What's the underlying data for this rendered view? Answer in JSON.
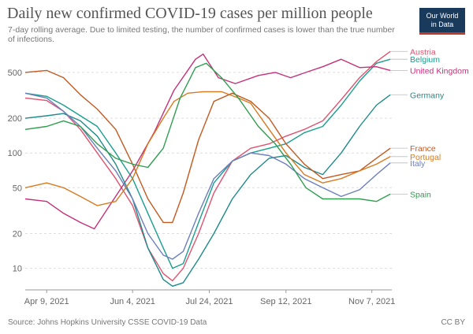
{
  "header": {
    "title": "Daily new confirmed COVID-19 cases per million people",
    "subtitle": "7-day rolling average. Due to limited testing, the number of confirmed cases is lower than the true number of infections.",
    "logo_line1": "Our World",
    "logo_line2": "in Data"
  },
  "footer": {
    "source": "Source: Johns Hopkins University CSSE COVID-19 Data",
    "license": "CC BY"
  },
  "chart_data": {
    "type": "line",
    "title": "Daily new confirmed COVID-19 cases per million people",
    "subtitle": "7-day rolling average. Due to limited testing, the number of confirmed cases is lower than the true number of infections.",
    "xlabel": "",
    "ylabel": "",
    "y_scale": "log",
    "ylim": [
      6.5,
      800
    ],
    "y_ticks": [
      10,
      20,
      50,
      100,
      200,
      500
    ],
    "y_tick_labels": [
      "10",
      "20",
      "50",
      "100",
      "200",
      "500"
    ],
    "xlim": [
      "2021-03-26",
      "2021-11-20"
    ],
    "x_ticks": [
      "2021-04-09",
      "2021-06-04",
      "2021-07-24",
      "2021-09-12",
      "2021-11-07"
    ],
    "x_tick_labels": [
      "Apr 9, 2021",
      "Jun 4, 2021",
      "Jul 24, 2021",
      "Sep 12, 2021",
      "Nov 7, 2021"
    ],
    "grid": "horizontal",
    "legend": "right",
    "series": [
      {
        "name": "Austria",
        "color": "#e0526f",
        "label_value": 760,
        "points": [
          [
            "2021-03-26",
            300
          ],
          [
            "2021-04-09",
            285
          ],
          [
            "2021-04-20",
            230
          ],
          [
            "2021-05-01",
            160
          ],
          [
            "2021-05-12",
            100
          ],
          [
            "2021-05-24",
            60
          ],
          [
            "2021-06-04",
            35
          ],
          [
            "2021-06-14",
            15
          ],
          [
            "2021-06-24",
            9
          ],
          [
            "2021-06-30",
            7.8
          ],
          [
            "2021-07-07",
            10
          ],
          [
            "2021-07-17",
            20
          ],
          [
            "2021-07-27",
            45
          ],
          [
            "2021-08-08",
            85
          ],
          [
            "2021-08-20",
            110
          ],
          [
            "2021-09-01",
            120
          ],
          [
            "2021-09-12",
            140
          ],
          [
            "2021-09-24",
            160
          ],
          [
            "2021-10-06",
            190
          ],
          [
            "2021-10-18",
            290
          ],
          [
            "2021-10-30",
            450
          ],
          [
            "2021-11-10",
            620
          ],
          [
            "2021-11-19",
            760
          ]
        ]
      },
      {
        "name": "Belgium",
        "color": "#1a9e8f",
        "label_value": 650,
        "points": [
          [
            "2021-03-26",
            330
          ],
          [
            "2021-04-09",
            310
          ],
          [
            "2021-04-20",
            260
          ],
          [
            "2021-05-01",
            210
          ],
          [
            "2021-05-12",
            170
          ],
          [
            "2021-05-24",
            100
          ],
          [
            "2021-06-04",
            60
          ],
          [
            "2021-06-14",
            30
          ],
          [
            "2021-06-24",
            15
          ],
          [
            "2021-06-30",
            10
          ],
          [
            "2021-07-07",
            11
          ],
          [
            "2021-07-17",
            25
          ],
          [
            "2021-07-27",
            55
          ],
          [
            "2021-08-08",
            85
          ],
          [
            "2021-08-20",
            100
          ],
          [
            "2021-09-01",
            110
          ],
          [
            "2021-09-12",
            120
          ],
          [
            "2021-09-24",
            150
          ],
          [
            "2021-10-06",
            170
          ],
          [
            "2021-10-18",
            260
          ],
          [
            "2021-10-30",
            420
          ],
          [
            "2021-11-10",
            600
          ],
          [
            "2021-11-19",
            650
          ]
        ]
      },
      {
        "name": "United Kingdom",
        "color": "#c4317a",
        "label_value": 520,
        "points": [
          [
            "2021-03-26",
            40
          ],
          [
            "2021-04-09",
            38
          ],
          [
            "2021-04-20",
            30
          ],
          [
            "2021-05-01",
            25
          ],
          [
            "2021-05-10",
            22
          ],
          [
            "2021-05-20",
            35
          ],
          [
            "2021-06-04",
            70
          ],
          [
            "2021-06-18",
            150
          ],
          [
            "2021-07-01",
            350
          ],
          [
            "2021-07-15",
            650
          ],
          [
            "2021-07-20",
            720
          ],
          [
            "2021-07-30",
            450
          ],
          [
            "2021-08-10",
            400
          ],
          [
            "2021-08-25",
            470
          ],
          [
            "2021-09-05",
            500
          ],
          [
            "2021-09-15",
            450
          ],
          [
            "2021-09-25",
            500
          ],
          [
            "2021-10-06",
            560
          ],
          [
            "2021-10-18",
            650
          ],
          [
            "2021-10-30",
            550
          ],
          [
            "2021-11-10",
            560
          ],
          [
            "2021-11-19",
            520
          ]
        ]
      },
      {
        "name": "Germany",
        "color": "#1f8a8a",
        "label_value": 320,
        "points": [
          [
            "2021-03-26",
            200
          ],
          [
            "2021-04-09",
            210
          ],
          [
            "2021-04-20",
            220
          ],
          [
            "2021-05-01",
            190
          ],
          [
            "2021-05-12",
            140
          ],
          [
            "2021-05-24",
            80
          ],
          [
            "2021-06-04",
            40
          ],
          [
            "2021-06-14",
            15
          ],
          [
            "2021-06-24",
            8
          ],
          [
            "2021-06-30",
            7
          ],
          [
            "2021-07-07",
            7.5
          ],
          [
            "2021-07-17",
            12
          ],
          [
            "2021-07-27",
            20
          ],
          [
            "2021-08-08",
            40
          ],
          [
            "2021-08-20",
            65
          ],
          [
            "2021-09-01",
            90
          ],
          [
            "2021-09-12",
            95
          ],
          [
            "2021-09-24",
            75
          ],
          [
            "2021-10-06",
            65
          ],
          [
            "2021-10-18",
            100
          ],
          [
            "2021-10-30",
            170
          ],
          [
            "2021-11-10",
            260
          ],
          [
            "2021-11-19",
            320
          ]
        ]
      },
      {
        "name": "France",
        "color": "#c25a20",
        "label_value": 110,
        "points": [
          [
            "2021-03-26",
            500
          ],
          [
            "2021-04-09",
            520
          ],
          [
            "2021-04-20",
            450
          ],
          [
            "2021-05-01",
            320
          ],
          [
            "2021-05-12",
            240
          ],
          [
            "2021-05-24",
            160
          ],
          [
            "2021-06-04",
            80
          ],
          [
            "2021-06-14",
            40
          ],
          [
            "2021-06-24",
            25
          ],
          [
            "2021-06-30",
            25
          ],
          [
            "2021-07-07",
            45
          ],
          [
            "2021-07-17",
            130
          ],
          [
            "2021-07-27",
            280
          ],
          [
            "2021-08-08",
            330
          ],
          [
            "2021-08-20",
            280
          ],
          [
            "2021-09-01",
            200
          ],
          [
            "2021-09-12",
            120
          ],
          [
            "2021-09-24",
            80
          ],
          [
            "2021-10-06",
            60
          ],
          [
            "2021-10-18",
            65
          ],
          [
            "2021-10-30",
            70
          ],
          [
            "2021-11-10",
            90
          ],
          [
            "2021-11-19",
            110
          ]
        ]
      },
      {
        "name": "Portugal",
        "color": "#d97a1e",
        "label_value": 93,
        "points": [
          [
            "2021-03-26",
            50
          ],
          [
            "2021-04-09",
            55
          ],
          [
            "2021-04-20",
            50
          ],
          [
            "2021-05-01",
            42
          ],
          [
            "2021-05-12",
            35
          ],
          [
            "2021-05-24",
            38
          ],
          [
            "2021-06-04",
            60
          ],
          [
            "2021-06-14",
            120
          ],
          [
            "2021-06-24",
            200
          ],
          [
            "2021-07-01",
            280
          ],
          [
            "2021-07-10",
            330
          ],
          [
            "2021-07-20",
            340
          ],
          [
            "2021-08-01",
            340
          ],
          [
            "2021-08-12",
            300
          ],
          [
            "2021-08-20",
            270
          ],
          [
            "2021-09-01",
            160
          ],
          [
            "2021-09-12",
            100
          ],
          [
            "2021-09-24",
            65
          ],
          [
            "2021-10-06",
            55
          ],
          [
            "2021-10-18",
            60
          ],
          [
            "2021-10-30",
            70
          ],
          [
            "2021-11-10",
            80
          ],
          [
            "2021-11-19",
            93
          ]
        ]
      },
      {
        "name": "Italy",
        "color": "#6b7fbd",
        "label_value": 82,
        "points": [
          [
            "2021-03-26",
            330
          ],
          [
            "2021-04-09",
            300
          ],
          [
            "2021-04-20",
            230
          ],
          [
            "2021-05-01",
            170
          ],
          [
            "2021-05-12",
            110
          ],
          [
            "2021-05-24",
            70
          ],
          [
            "2021-06-04",
            40
          ],
          [
            "2021-06-14",
            20
          ],
          [
            "2021-06-24",
            13
          ],
          [
            "2021-06-30",
            12
          ],
          [
            "2021-07-07",
            14
          ],
          [
            "2021-07-17",
            30
          ],
          [
            "2021-07-27",
            60
          ],
          [
            "2021-08-08",
            85
          ],
          [
            "2021-08-20",
            100
          ],
          [
            "2021-09-01",
            95
          ],
          [
            "2021-09-12",
            80
          ],
          [
            "2021-09-24",
            60
          ],
          [
            "2021-10-06",
            50
          ],
          [
            "2021-10-18",
            42
          ],
          [
            "2021-10-30",
            48
          ],
          [
            "2021-11-10",
            65
          ],
          [
            "2021-11-19",
            82
          ]
        ]
      },
      {
        "name": "Spain",
        "color": "#2f9e4f",
        "label_value": 44,
        "points": [
          [
            "2021-03-26",
            160
          ],
          [
            "2021-04-09",
            170
          ],
          [
            "2021-04-20",
            190
          ],
          [
            "2021-05-01",
            170
          ],
          [
            "2021-05-12",
            120
          ],
          [
            "2021-05-24",
            90
          ],
          [
            "2021-06-04",
            80
          ],
          [
            "2021-06-14",
            75
          ],
          [
            "2021-06-24",
            110
          ],
          [
            "2021-07-05",
            300
          ],
          [
            "2021-07-15",
            550
          ],
          [
            "2021-07-22",
            600
          ],
          [
            "2021-08-01",
            450
          ],
          [
            "2021-08-12",
            300
          ],
          [
            "2021-08-25",
            170
          ],
          [
            "2021-09-05",
            120
          ],
          [
            "2021-09-15",
            80
          ],
          [
            "2021-09-25",
            50
          ],
          [
            "2021-10-06",
            40
          ],
          [
            "2021-10-18",
            40
          ],
          [
            "2021-10-30",
            40
          ],
          [
            "2021-11-10",
            38
          ],
          [
            "2021-11-19",
            44
          ]
        ]
      }
    ]
  }
}
